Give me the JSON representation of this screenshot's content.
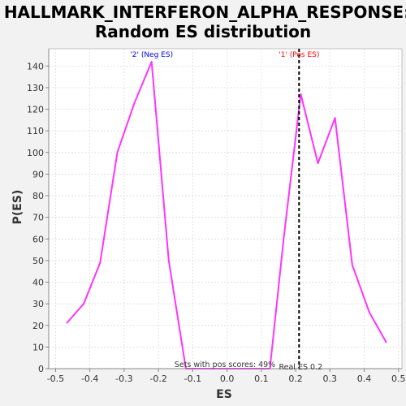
{
  "chart_data": {
    "type": "line",
    "title_line1": "HALLMARK_INTERFERON_ALPHA_RESPONSE:",
    "title_line2": "Random ES distribution",
    "xlabel": "ES",
    "ylabel": "P(ES)",
    "xlim": [
      -0.52,
      0.51
    ],
    "ylim": [
      0,
      148
    ],
    "xticks": [
      -0.5,
      -0.4,
      -0.3,
      -0.2,
      -0.1,
      0.0,
      0.1,
      0.2,
      0.3,
      0.4,
      0.5
    ],
    "xtick_labels": [
      "-0.5",
      "-0.4",
      "-0.3",
      "-0.2",
      "-0.1",
      "0.0",
      "0.1",
      "0.2",
      "0.3",
      "0.4",
      "0.5"
    ],
    "yticks": [
      0,
      10,
      20,
      30,
      40,
      50,
      60,
      70,
      80,
      90,
      100,
      110,
      120,
      130,
      140
    ],
    "grid": true,
    "series": [
      {
        "color": "#ff33ff",
        "x": [
          -0.468,
          -0.418,
          -0.37,
          -0.32,
          -0.27,
          -0.22,
          -0.17,
          -0.12,
          -0.07,
          -0.02,
          0.03,
          0.08,
          0.125,
          0.165,
          0.215,
          0.265,
          0.315,
          0.365,
          0.415,
          0.465
        ],
        "y": [
          21,
          30,
          49,
          100,
          123,
          142,
          50,
          0,
          0,
          0,
          0,
          0,
          0,
          60,
          127,
          95,
          116,
          48,
          26,
          12
        ]
      }
    ],
    "real_es": 0.21,
    "real_es_label": "Real ES 0.2",
    "annotations": {
      "neg_label": "'2' (Neg ES)",
      "neg_x": -0.22,
      "neg_color": "#0000ff",
      "pos_label": "'1' (Pos ES)",
      "pos_x": 0.21,
      "pos_color": "#ff0000",
      "footer": "Sets with pos scores: 49%"
    },
    "colors": {
      "plot_bg": "#ffffff",
      "page_bg": "#f2f2f2",
      "grid": "#d8d8d8",
      "real_es_line": "#000000"
    }
  }
}
